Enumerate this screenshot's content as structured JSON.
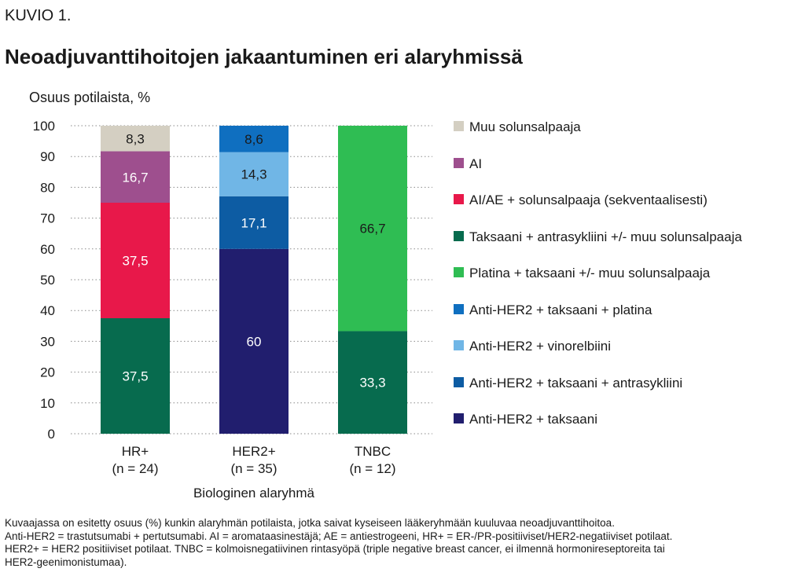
{
  "figure_label": "KUVIO 1.",
  "chart_data": {
    "type": "bar",
    "stacked": true,
    "title": "Neoadjuvanttihoitojen jakaantuminen eri alaryhmissä",
    "ylabel": "Osuus potilaista, %",
    "xlabel": "Biologinen alaryhmä",
    "ylim": [
      0,
      100
    ],
    "yticks": [
      0,
      10,
      20,
      30,
      40,
      50,
      60,
      70,
      80,
      90,
      100
    ],
    "grid": "horizontal dotted",
    "legend_position": "right",
    "categories": [
      {
        "name": "HR+",
        "n": "(n = 24)"
      },
      {
        "name": "HER2+",
        "n": "(n = 35)"
      },
      {
        "name": "TNBC",
        "n": "(n = 12)"
      }
    ],
    "series": [
      {
        "name": "Muu solunsalpaaja",
        "color": "#d4cfc2",
        "label_color": "#1a1a1a",
        "values": [
          8.3,
          null,
          null
        ],
        "labels": [
          "8,3",
          "",
          ""
        ]
      },
      {
        "name": "AI",
        "color": "#9e4f8e",
        "label_color": "#ffffff",
        "values": [
          16.7,
          null,
          null
        ],
        "labels": [
          "16,7",
          "",
          ""
        ]
      },
      {
        "name": "AI/AE + solunsalpaaja (sekventaalisesti)",
        "color": "#e8184a",
        "label_color": "#ffffff",
        "values": [
          37.5,
          null,
          null
        ],
        "labels": [
          "37,5",
          "",
          ""
        ]
      },
      {
        "name": "Taksaani + antrasykliini +/- muu solunsalpaaja",
        "color": "#076b4e",
        "label_color": "#ffffff",
        "values": [
          37.5,
          null,
          33.3
        ],
        "labels": [
          "37,5",
          "",
          "33,3"
        ]
      },
      {
        "name": "Platina + taksaani +/- muu solunsalpaaja",
        "color": "#2fbd53",
        "label_color": "#1a1a1a",
        "values": [
          null,
          null,
          66.7
        ],
        "labels": [
          "",
          "",
          "66,7"
        ]
      },
      {
        "name": "Anti-HER2 + taksaani + platina",
        "color": "#0f6fc0",
        "label_color": "#1a1a1a",
        "values": [
          null,
          8.6,
          null
        ],
        "labels": [
          "",
          "8,6",
          ""
        ]
      },
      {
        "name": "Anti-HER2 + vinorelbiini",
        "color": "#70b6e6",
        "label_color": "#1a1a1a",
        "values": [
          null,
          14.3,
          null
        ],
        "labels": [
          "",
          "14,3",
          ""
        ]
      },
      {
        "name": "Anti-HER2 + taksaani + antrasykliini",
        "color": "#0d5ca3",
        "label_color": "#ffffff",
        "values": [
          null,
          17.1,
          null
        ],
        "labels": [
          "",
          "17,1",
          ""
        ]
      },
      {
        "name": "Anti-HER2 + taksaani",
        "color": "#211e6e",
        "label_color": "#ffffff",
        "values": [
          null,
          60,
          null
        ],
        "labels": [
          "",
          "60",
          ""
        ]
      }
    ],
    "stack_order_bottom_to_top": [
      "Anti-HER2 + taksaani",
      "Anti-HER2 + taksaani + antrasykliini",
      "Taksaani + antrasykliini +/- muu solunsalpaaja",
      "Platina + taksaani +/- muu solunsalpaaja",
      "AI/AE + solunsalpaaja (sekventaalisesti)",
      "Anti-HER2 + vinorelbiini",
      "AI",
      "Anti-HER2 + taksaani + platina",
      "Muu solunsalpaaja"
    ]
  },
  "footnote": [
    "Kuvaajassa on esitetty osuus (%) kunkin alaryhmän potilaista, jotka saivat kyseiseen lääkeryhmään kuuluvaa neoadjuvanttihoitoa.",
    "Anti-HER2 = trastutsumabi + pertutsumabi. AI = aromataasinestäjä; AE = antiestrogeeni, HR+ = ER-/PR-positiiviset/HER2-negatiiviset potilaat.",
    "HER2+ = HER2 positiiviset potilaat. TNBC = kolmoisnegatiivinen rintasyöpä (triple negative breast cancer, ei ilmennä hormonireseptoreita tai",
    "HER2-geenimonistumaa)."
  ]
}
